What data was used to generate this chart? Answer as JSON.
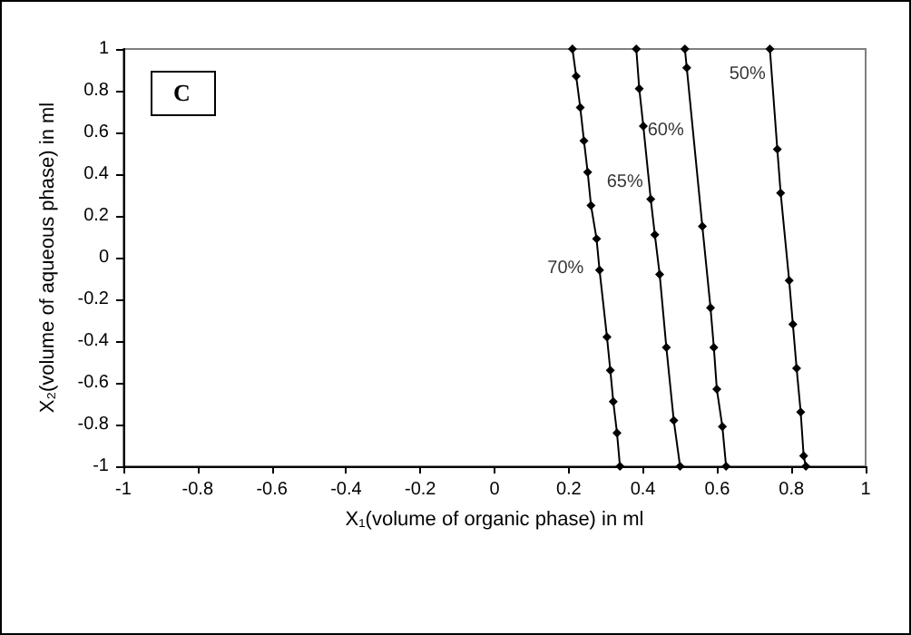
{
  "chart_data": {
    "type": "line",
    "xlabel": "X₁(volume of organic phase) in ml",
    "ylabel": "X₂(volume of aqueous phase) in ml",
    "xlim": [
      -1,
      1
    ],
    "ylim": [
      -1,
      1
    ],
    "xticks": [
      -1,
      -0.8,
      -0.6,
      -0.4,
      -0.2,
      0,
      0.2,
      0.4,
      0.6,
      0.8,
      1
    ],
    "yticks": [
      -1,
      -0.8,
      -0.6,
      -0.4,
      -0.2,
      0,
      0.2,
      0.4,
      0.6,
      0.8,
      1
    ],
    "grid": false,
    "marker": "diamond",
    "line_style": "solid",
    "series": [
      {
        "color": "#000000",
        "x": [
          0.21,
          0.22,
          0.231,
          0.241,
          0.251,
          0.26,
          0.275,
          0.283,
          0.303,
          0.312,
          0.32,
          0.33,
          0.338
        ],
        "values": [
          1,
          0.87,
          0.72,
          0.56,
          0.41,
          0.25,
          0.09,
          -0.06,
          -0.38,
          -0.54,
          -0.69,
          -0.84,
          -1
        ]
      },
      {
        "color": "#000000",
        "x": [
          0.382,
          0.39,
          0.401,
          0.421,
          0.432,
          0.445,
          0.463,
          0.483,
          0.5
        ],
        "values": [
          1,
          0.81,
          0.63,
          0.28,
          0.11,
          -0.08,
          -0.43,
          -0.78,
          -1
        ]
      },
      {
        "color": "#000000",
        "x": [
          0.513,
          0.518,
          0.56,
          0.582,
          0.591,
          0.599,
          0.614,
          0.624
        ],
        "values": [
          1,
          0.91,
          0.15,
          -0.24,
          -0.43,
          -0.63,
          -0.81,
          -1
        ]
      },
      {
        "color": "#000000",
        "x": [
          0.742,
          0.762,
          0.771,
          0.794,
          0.804,
          0.814,
          0.825,
          0.833,
          0.839
        ],
        "values": [
          1,
          0.52,
          0.31,
          -0.11,
          -0.32,
          -0.53,
          -0.74,
          -0.95,
          -1
        ]
      }
    ],
    "annotations": [
      "C",
      {
        "text": "70%",
        "x": 0.26,
        "y": -0.05
      },
      {
        "text": "65%",
        "x": 0.42,
        "y": 0.36
      },
      {
        "text": "60%",
        "x": 0.53,
        "y": 0.61
      },
      {
        "text": "50%",
        "x": 0.75,
        "y": 0.88
      }
    ]
  }
}
